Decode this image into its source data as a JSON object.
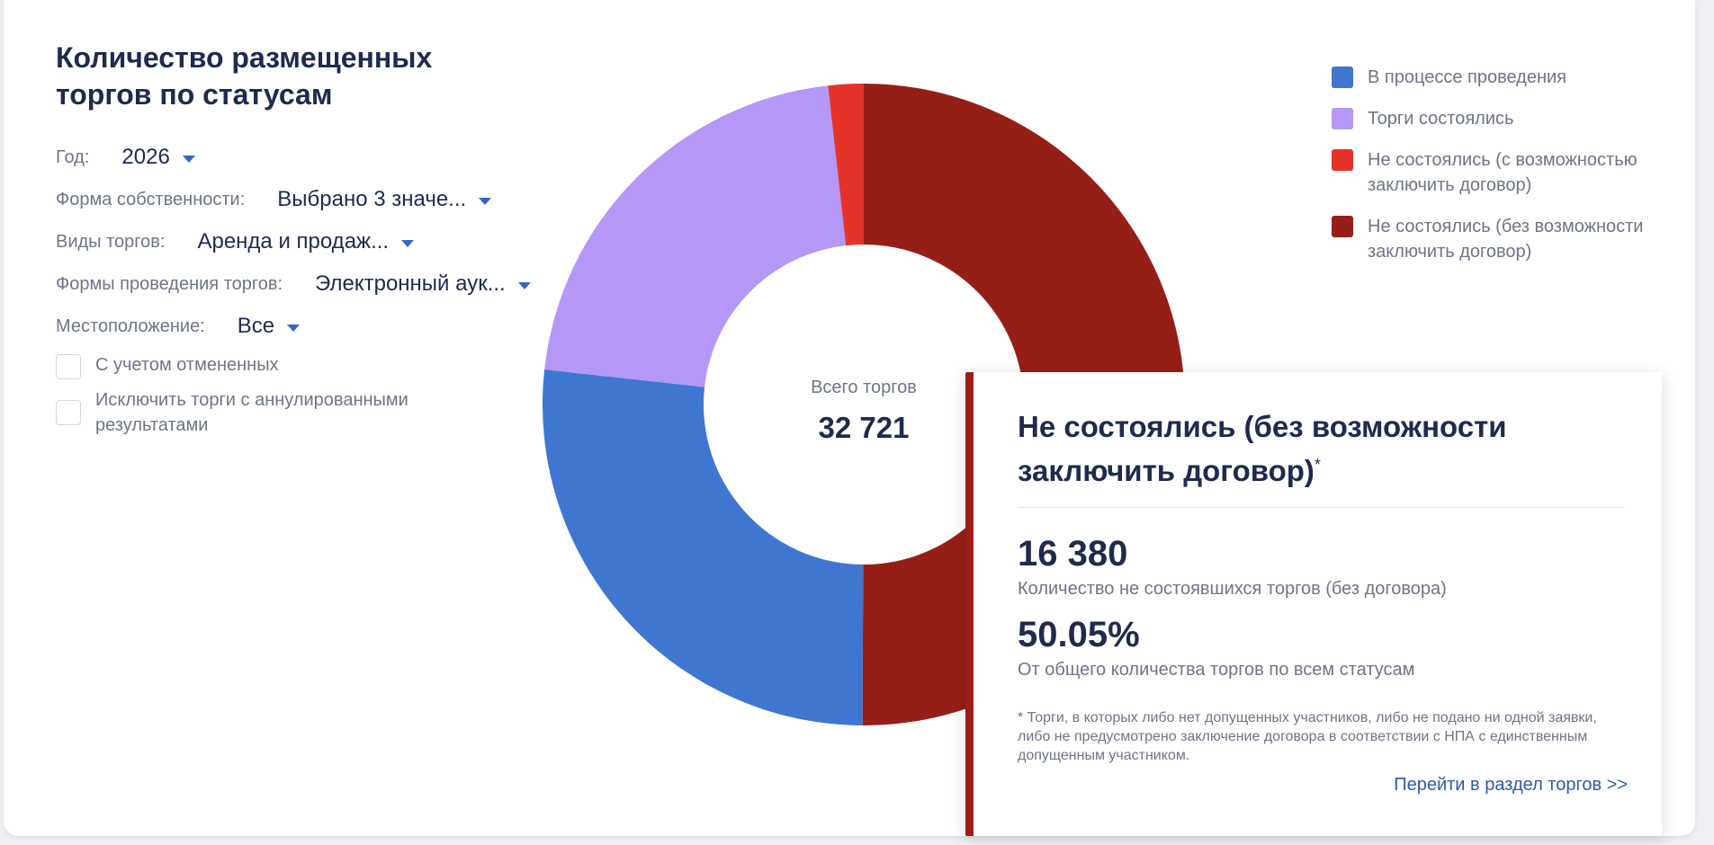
{
  "panel": {
    "title": "Количество размещенных торгов по статусам"
  },
  "filters": [
    {
      "label": "Год:",
      "value": "2026"
    },
    {
      "label": "Форма собственности:",
      "value": "Выбрано 3 значе..."
    },
    {
      "label": "Виды торгов:",
      "value": "Аренда и продаж..."
    },
    {
      "label": "Формы проведения торгов:",
      "value": "Электронный аук..."
    },
    {
      "label": "Местоположение:",
      "value": "Все"
    }
  ],
  "checkboxes": [
    {
      "label": "С учетом отмененных",
      "checked": false
    },
    {
      "label": "Исключить торги с аннулированными результатами",
      "checked": false
    }
  ],
  "chart_data": {
    "type": "pie",
    "donut": true,
    "center_label": "Всего торгов",
    "center_value": "32 721",
    "total": 32721,
    "slices": [
      {
        "name": "Не состоялись (без возможности заключить договор)",
        "value": 16380,
        "color": "#951e17"
      },
      {
        "name": "В процессе проведения",
        "value": 8730,
        "color": "#3f76d0"
      },
      {
        "name": "Торги состоялись",
        "value": 7030,
        "color": "#b597f7"
      },
      {
        "name": "Не состоялись (с возможностью заключить договор)",
        "value": 581,
        "color": "#e5332a"
      }
    ],
    "legend_position": "top-right"
  },
  "legend": [
    {
      "label": "В процессе проведения",
      "color": "#3f76d0"
    },
    {
      "label": "Торги состоялись",
      "color": "#b597f7"
    },
    {
      "label": "Не состоялись (с возможностью заключить договор)",
      "color": "#e5332a"
    },
    {
      "label": "Не состоялись (без возможности заключить договор)",
      "color": "#951e17"
    }
  ],
  "tooltip": {
    "title": "Не состоялись (без возможности заключить договор)",
    "title_mark": "*",
    "count": "16 380",
    "count_caption": "Количество не состоявшихся торгов (без договора)",
    "percent": "50.05%",
    "percent_caption": "От общего количества торгов по всем статусам",
    "note": "* Торги, в которых либо нет допущенных участников, либо не подано ни одной заявки, либо не предусмотрено заключение договора в соответствии с НПА с единственным допущенным участником.",
    "link": "Перейти в раздел торгов  >>",
    "accent": "#951e17"
  }
}
